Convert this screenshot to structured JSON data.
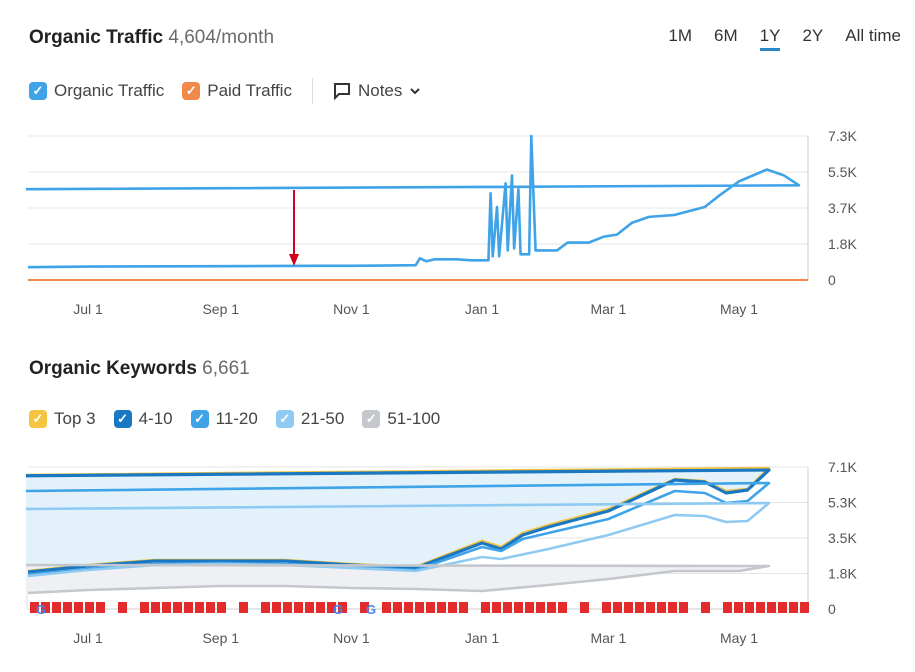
{
  "traffic": {
    "title": "Organic Traffic",
    "value": "4,604/month",
    "ranges": [
      {
        "label": "1M"
      },
      {
        "label": "6M"
      },
      {
        "label": "1Y",
        "active": true
      },
      {
        "label": "2Y"
      },
      {
        "label": "All time"
      }
    ],
    "legend": [
      {
        "label": "Organic Traffic",
        "color": "#3fa3e8"
      },
      {
        "label": "Paid Traffic",
        "color": "#f08a4b"
      }
    ],
    "notes_label": "Notes",
    "notes_icon": "speech-bubble-icon",
    "annotation_icon": "red-arrow-icon",
    "annotation_color": "#d0021b"
  },
  "keywords": {
    "title": "Organic Keywords",
    "value": "6,661",
    "legend": [
      {
        "label": "Top 3",
        "color": "#f5c542"
      },
      {
        "label": "4-10",
        "color": "#1a78c2"
      },
      {
        "label": "11-20",
        "color": "#3fa3e8"
      },
      {
        "label": "21-50",
        "color": "#8fcaf3"
      },
      {
        "label": "51-100",
        "color": "#c4c8cd"
      }
    ]
  },
  "chart_data": [
    {
      "type": "line",
      "ylim": [
        0,
        7300
      ],
      "yticks": [
        "7.3K",
        "5.5K",
        "3.7K",
        "1.8K",
        "0"
      ],
      "xticks": [
        "Jul 1",
        "Sep 1",
        "Nov 1",
        "Jan 1",
        "Mar 1",
        "May 1"
      ],
      "grid": true,
      "series": [
        {
          "name": "Organic Traffic",
          "color": "#3fa3e8",
          "points": [
            [
              "06-03",
              650
            ],
            [
              "07-01",
              680
            ],
            [
              "09-01",
              700
            ],
            [
              "10-15",
              720
            ],
            [
              "11-01",
              720
            ],
            [
              "12-01",
              750
            ],
            [
              "12-03",
              1100
            ],
            [
              "12-06",
              950
            ],
            [
              "12-10",
              1050
            ],
            [
              "12-20",
              1050
            ],
            [
              "12-27",
              1000
            ],
            [
              "01-01",
              1000
            ],
            [
              "01-04",
              1000
            ],
            [
              "01-05",
              4400
            ],
            [
              "01-06",
              1200
            ],
            [
              "01-08",
              3700
            ],
            [
              "01-09",
              1200
            ],
            [
              "01-12",
              4900
            ],
            [
              "01-13",
              1500
            ],
            [
              "01-15",
              5300
            ],
            [
              "01-16",
              1600
            ],
            [
              "01-18",
              4600
            ],
            [
              "01-19",
              1300
            ],
            [
              "01-23",
              1300
            ],
            [
              "01-24",
              7300
            ],
            [
              "01-26",
              1500
            ],
            [
              "02-05",
              1500
            ],
            [
              "02-10",
              1900
            ],
            [
              "02-20",
              1900
            ],
            [
              "02-27",
              2200
            ],
            [
              "03-05",
              2300
            ],
            [
              "03-12",
              2900
            ],
            [
              "03-20",
              3200
            ],
            [
              "04-01",
              3300
            ],
            [
              "04-15",
              3700
            ],
            [
              "04-22",
              4300
            ],
            [
              "05-01",
              5000
            ],
            [
              "05-14",
              5600
            ],
            [
              "05-22",
              5300
            ],
            [
              "05-29",
              4800
            ],
            [
              "06-02",
              4604
            ]
          ]
        },
        {
          "name": "Paid Traffic",
          "color": "#f08a4b",
          "points": [
            [
              "06-03",
              0
            ],
            [
              "06-02",
              0
            ]
          ]
        }
      ]
    },
    {
      "type": "area",
      "ylim": [
        0,
        7100
      ],
      "yticks": [
        "7.1K",
        "5.3K",
        "3.5K",
        "1.8K",
        "0"
      ],
      "xticks": [
        "Jul 1",
        "Sep 1",
        "Nov 1",
        "Jan 1",
        "Mar 1",
        "May 1"
      ],
      "grid": true,
      "series": [
        {
          "name": "Top 3",
          "color": "#f5c542",
          "points": [
            [
              "06-03",
              1900
            ],
            [
              "07-01",
              2200
            ],
            [
              "08-01",
              2450
            ],
            [
              "09-01",
              2450
            ],
            [
              "10-01",
              2450
            ],
            [
              "11-01",
              2250
            ],
            [
              "12-01",
              2100
            ],
            [
              "01-01",
              3400
            ],
            [
              "01-10",
              3100
            ],
            [
              "01-20",
              3800
            ],
            [
              "02-01",
              4200
            ],
            [
              "03-01",
              5000
            ],
            [
              "04-01",
              6500
            ],
            [
              "04-15",
              6400
            ],
            [
              "04-25",
              5900
            ],
            [
              "05-05",
              6000
            ],
            [
              "05-15",
              7050
            ],
            [
              "06-02",
              6700
            ]
          ]
        },
        {
          "name": "4-10",
          "color": "#1a78c2",
          "points": [
            [
              "06-03",
              1850
            ],
            [
              "07-01",
              2150
            ],
            [
              "08-01",
              2400
            ],
            [
              "09-01",
              2400
            ],
            [
              "10-01",
              2400
            ],
            [
              "11-01",
              2200
            ],
            [
              "12-01",
              2050
            ],
            [
              "01-01",
              3300
            ],
            [
              "01-10",
              3000
            ],
            [
              "01-20",
              3700
            ],
            [
              "02-01",
              4100
            ],
            [
              "03-01",
              4900
            ],
            [
              "04-01",
              6450
            ],
            [
              "04-15",
              6350
            ],
            [
              "04-25",
              5800
            ],
            [
              "05-05",
              5950
            ],
            [
              "05-15",
              6950
            ],
            [
              "06-02",
              6661
            ]
          ]
        },
        {
          "name": "11-20",
          "color": "#3fa3e8",
          "points": [
            [
              "06-03",
              1700
            ],
            [
              "07-01",
              2000
            ],
            [
              "08-01",
              2250
            ],
            [
              "09-01",
              2300
            ],
            [
              "10-01",
              2250
            ],
            [
              "11-01",
              2100
            ],
            [
              "12-01",
              1950
            ],
            [
              "01-01",
              3100
            ],
            [
              "01-10",
              2900
            ],
            [
              "01-20",
              3500
            ],
            [
              "02-01",
              3800
            ],
            [
              "03-01",
              4500
            ],
            [
              "04-01",
              5900
            ],
            [
              "04-15",
              5800
            ],
            [
              "04-25",
              5300
            ],
            [
              "05-05",
              5400
            ],
            [
              "05-15",
              6300
            ],
            [
              "06-02",
              5900
            ]
          ]
        },
        {
          "name": "21-50",
          "color": "#8fcaf3",
          "points": [
            [
              "06-03",
              1650
            ],
            [
              "07-01",
              1950
            ],
            [
              "08-01",
              2200
            ],
            [
              "09-01",
              2250
            ],
            [
              "10-01",
              2200
            ],
            [
              "11-01",
              2050
            ],
            [
              "12-01",
              1900
            ],
            [
              "01-01",
              2600
            ],
            [
              "01-10",
              2500
            ],
            [
              "02-01",
              3000
            ],
            [
              "03-01",
              3700
            ],
            [
              "04-01",
              4700
            ],
            [
              "04-15",
              4650
            ],
            [
              "04-25",
              4350
            ],
            [
              "05-05",
              4400
            ],
            [
              "05-15",
              5300
            ],
            [
              "06-02",
              5000
            ]
          ]
        },
        {
          "name": "51-100",
          "color": "#c4c8cd",
          "points": [
            [
              "06-03",
              800
            ],
            [
              "07-01",
              950
            ],
            [
              "09-01",
              1150
            ],
            [
              "10-01",
              1150
            ],
            [
              "11-01",
              1050
            ],
            [
              "12-01",
              1000
            ],
            [
              "01-01",
              900
            ],
            [
              "02-01",
              1200
            ],
            [
              "03-01",
              1500
            ],
            [
              "04-01",
              1900
            ],
            [
              "05-01",
              1900
            ],
            [
              "05-15",
              2150
            ],
            [
              "06-02",
              2200
            ]
          ]
        }
      ]
    }
  ]
}
